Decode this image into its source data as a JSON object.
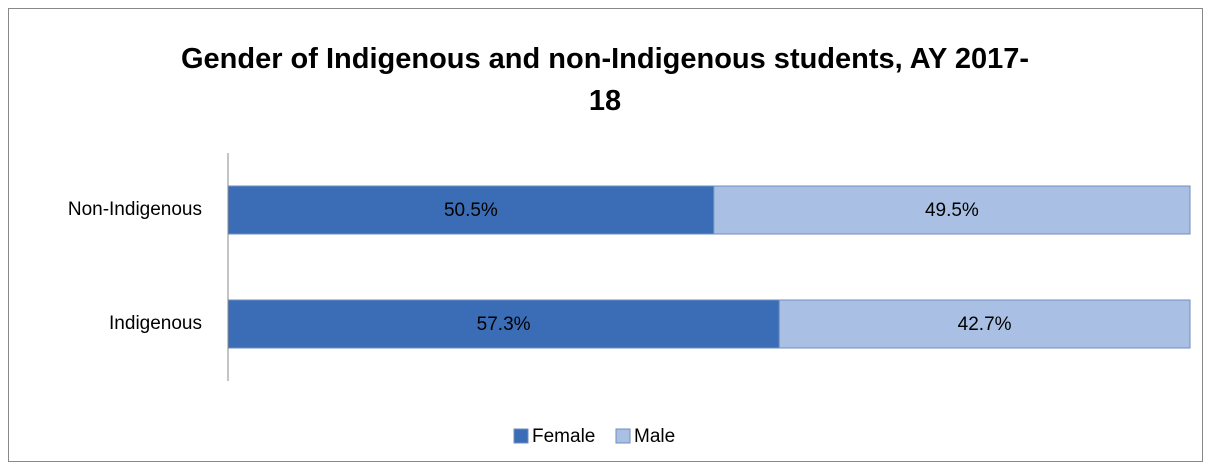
{
  "chart_data": {
    "type": "stacked-barh",
    "title": "Gender of Indigenous and non-Indigenous students, AY 2017-18",
    "categories": [
      "Indigenous",
      "Non-Indigenous"
    ],
    "series": [
      {
        "name": "Female",
        "color": "#3a6db6",
        "values": [
          57.3,
          50.5
        ],
        "value_labels": [
          "57.3%",
          "50.5%"
        ]
      },
      {
        "name": "Male",
        "color": "#a9c0e4",
        "values": [
          42.7,
          49.5
        ],
        "value_labels": [
          "42.7%",
          "49.5%"
        ]
      }
    ],
    "xlim": [
      0,
      100
    ],
    "legend": "bottom"
  }
}
